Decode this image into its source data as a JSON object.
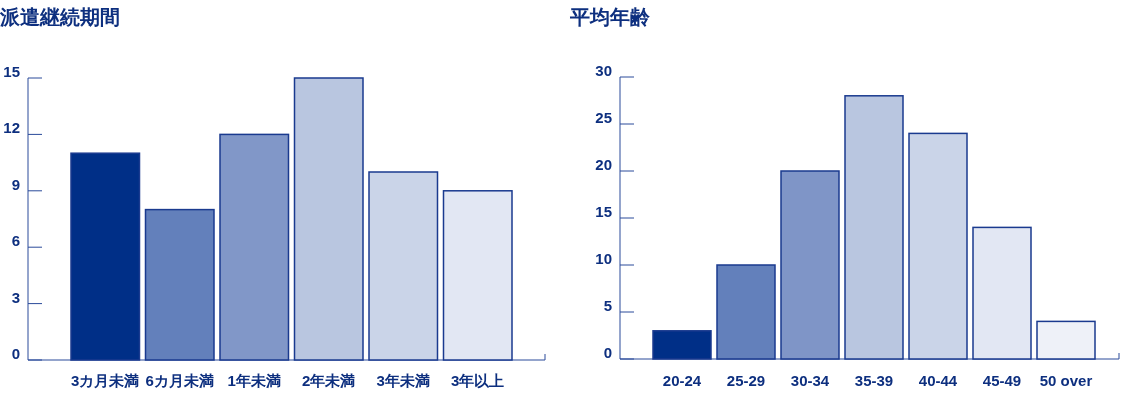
{
  "chart_data": [
    {
      "type": "bar",
      "title": "派遣継続期間",
      "categories": [
        "3カ月未満",
        "6カ月未満",
        "1年未満",
        "2年未満",
        "3年未満",
        "3年以上"
      ],
      "values": [
        11,
        8,
        12,
        15,
        10,
        9
      ],
      "colors": [
        "#002f87",
        "#6380bb",
        "#8197c8",
        "#b9c6e0",
        "#cad4e8",
        "#e2e7f3"
      ],
      "ylim": [
        0,
        15
      ],
      "yticks": [
        0,
        3,
        6,
        9,
        12,
        15
      ],
      "grid": false
    },
    {
      "type": "bar",
      "title": "平均年齢",
      "categories": [
        "20-24",
        "25-29",
        "30-34",
        "35-39",
        "40-44",
        "45-49",
        "50 over"
      ],
      "values": [
        3,
        10,
        20,
        28,
        24,
        14,
        4
      ],
      "colors": [
        "#002f87",
        "#6380bb",
        "#7f95c7",
        "#b9c6e0",
        "#cad4e8",
        "#e2e7f3",
        "#eef1f8"
      ],
      "ylim": [
        0,
        30
      ],
      "yticks": [
        0,
        5,
        10,
        15,
        20,
        25,
        30
      ],
      "grid": false
    }
  ]
}
